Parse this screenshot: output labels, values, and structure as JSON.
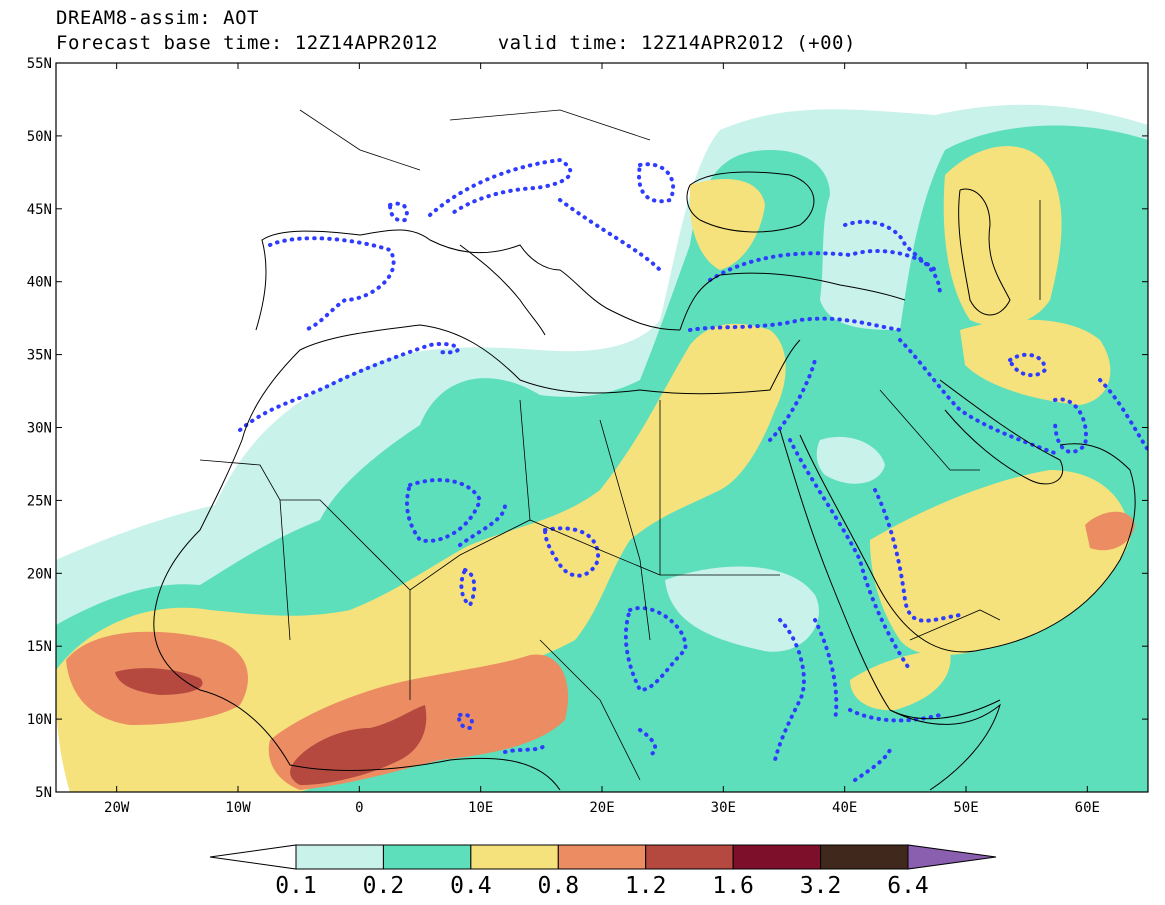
{
  "header": {
    "line1": "DREAM8-assim: AOT",
    "line2": "Forecast base time: 12Z14APR2012     valid time: 12Z14APR2012 (+00)"
  },
  "axes": {
    "lat_labels": [
      "55N",
      "50N",
      "45N",
      "40N",
      "35N",
      "30N",
      "25N",
      "20N",
      "15N",
      "10N",
      "5N"
    ],
    "lon_labels": [
      "20W",
      "10W",
      "0",
      "10E",
      "20E",
      "30E",
      "40E",
      "50E",
      "60E"
    ]
  },
  "colorbar": {
    "ticks": [
      "0.1",
      "0.2",
      "0.4",
      "0.8",
      "1.2",
      "1.6",
      "3.2",
      "6.4"
    ],
    "colors": [
      "#ffffff",
      "#c8f2ea",
      "#5edfbb",
      "#f5e27c",
      "#eb8c63",
      "#b5493f",
      "#7d0f2a",
      "#41281c",
      "#8a5fb0"
    ]
  },
  "map": {
    "extent": {
      "lon_min": -25,
      "lon_max": 65,
      "lat_min": 5,
      "lat_max": 55
    },
    "contour_color": "#2f3cff",
    "region": "North Africa, Mediterranean, Middle East"
  }
}
